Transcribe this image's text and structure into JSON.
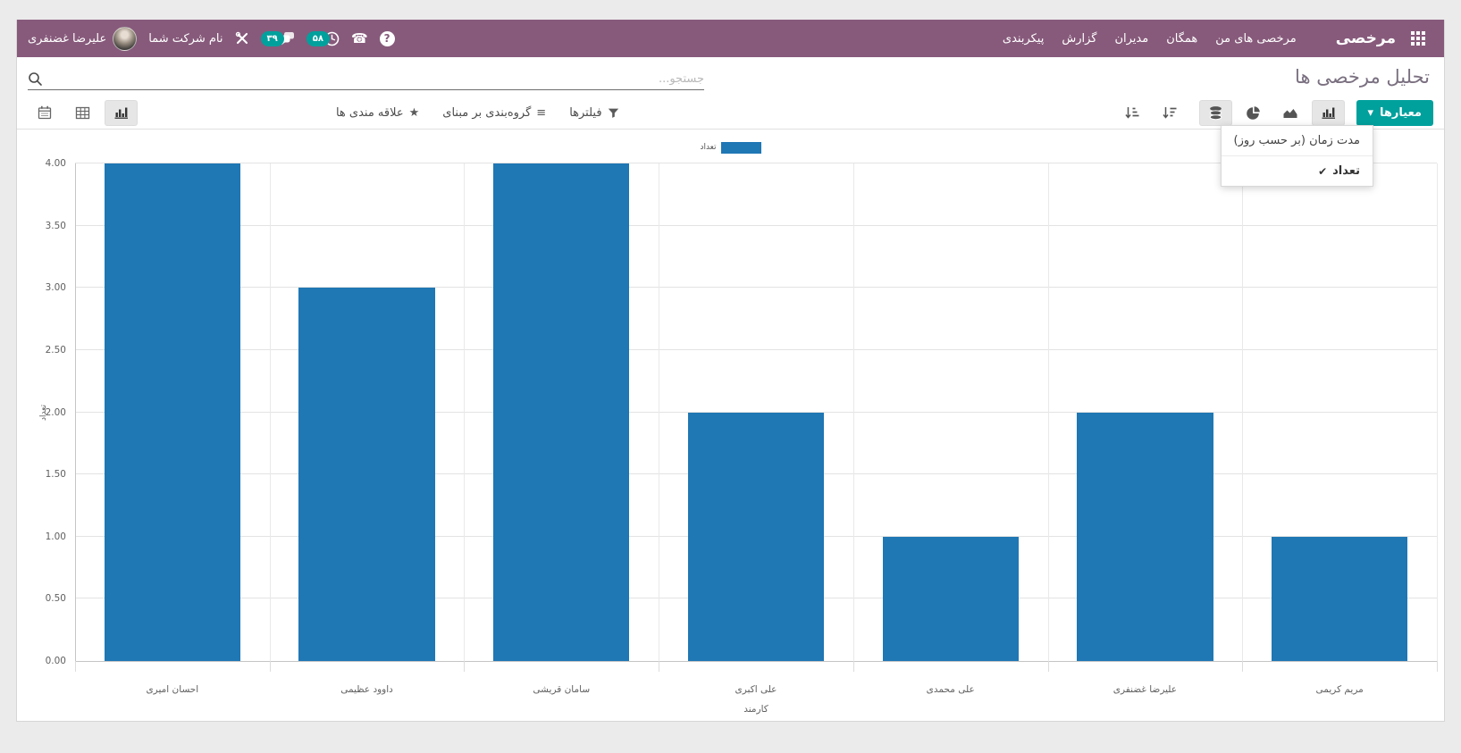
{
  "colors": {
    "navbar_bg": "#875A7B",
    "accent": "#00A09D",
    "bar": "#1f77b4"
  },
  "navbar": {
    "brand": "مرخصی",
    "menu_items": [
      {
        "label": "مرخصی های من"
      },
      {
        "label": "همگان"
      },
      {
        "label": "مدیران"
      },
      {
        "label": "گزارش"
      },
      {
        "label": "پیکربندی"
      }
    ],
    "systray": {
      "messages_badge": "۳۹",
      "activities_badge": "۵۸",
      "company_name": "نام شرکت شما",
      "user_name": "علیرضا غضنفری"
    }
  },
  "icons": {
    "help": "?",
    "phone": "☎",
    "star": "★",
    "groupby": "≡",
    "caret_down": "▾",
    "check": "✔"
  },
  "control_panel": {
    "title": "تحلیل مرخصی ها",
    "search_placeholder": "جستجو...",
    "filters_label": "فیلترها",
    "groupby_label": "گروه‌بندی بر مبنای",
    "favorites_label": "علاقه مندی ها",
    "measures_label": "معیارها"
  },
  "measures_dropdown": {
    "items": [
      {
        "label": "مدت زمان (بر حسب روز)",
        "checked": false
      },
      {
        "label": "تعداد",
        "checked": true
      }
    ]
  },
  "chart_data": {
    "type": "bar",
    "title": "",
    "legend": [
      "تعداد"
    ],
    "categories": [
      "احسان امیری",
      "داوود عظیمی",
      "سامان قریشی",
      "علی اکبری",
      "علی محمدی",
      "علیرضا غضنفری",
      "مریم کریمی"
    ],
    "series": [
      {
        "name": "تعداد",
        "values": [
          4,
          3,
          4,
          2,
          1,
          2,
          1
        ]
      }
    ],
    "xlabel": "کارمند",
    "ylabel": "تعداد",
    "ylim": [
      0,
      4
    ],
    "ytick_labels": [
      "0.00",
      "0.50",
      "1.00",
      "1.50",
      "2.00",
      "2.50",
      "3.00",
      "3.50",
      "4.00"
    ],
    "bar_color": "#1f77b4",
    "grid": true,
    "legend_position": "top-center"
  }
}
